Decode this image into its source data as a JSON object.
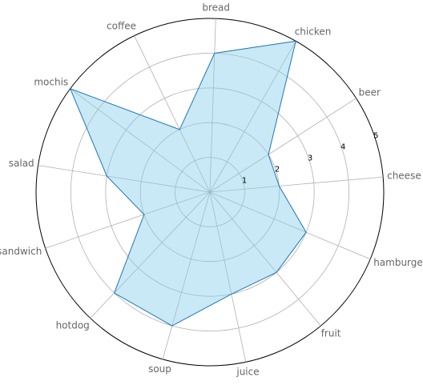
{
  "chart_data": {
    "type": "radar",
    "categories": [
      "cheese",
      "beer",
      "chicken",
      "bread",
      "coffee",
      "mochis",
      "salad",
      "sandwich",
      "hotdog",
      "soup",
      "juice",
      "fruit",
      "hamburger"
    ],
    "values": [
      2,
      2,
      5,
      4,
      2,
      5,
      3,
      2,
      4,
      4,
      3,
      3,
      3
    ],
    "rlim": [
      0,
      5
    ],
    "rticks": [
      "1",
      "2",
      "3",
      "4",
      "5"
    ],
    "grid": true,
    "colors": {
      "fill": "#87ceeb",
      "line": "#1f77b4"
    }
  }
}
